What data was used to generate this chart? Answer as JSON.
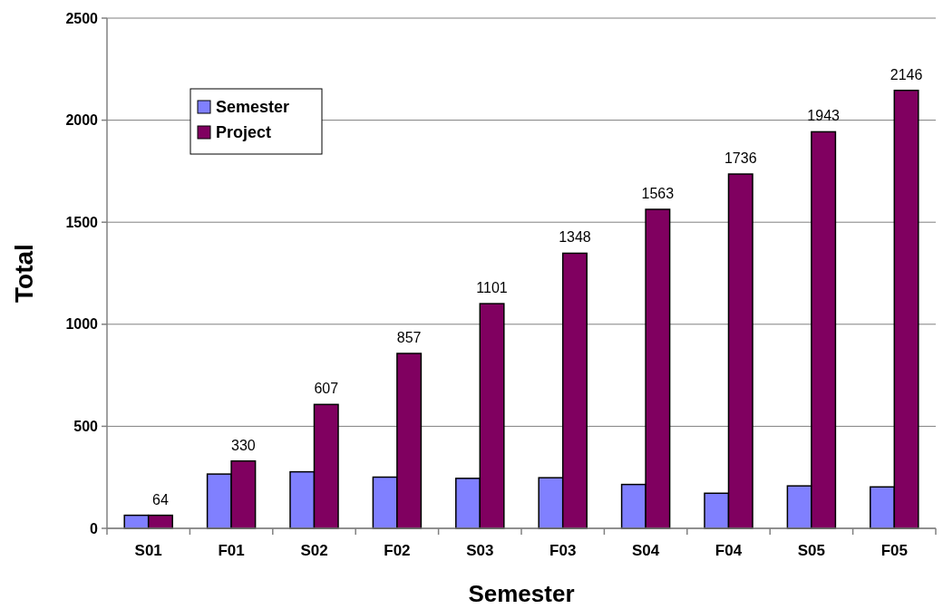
{
  "chart_data": {
    "type": "bar",
    "xlabel": "Semester",
    "ylabel": "Total",
    "categories": [
      "S01",
      "F01",
      "S02",
      "F02",
      "S03",
      "F03",
      "S04",
      "F04",
      "S05",
      "F05"
    ],
    "series": [
      {
        "name": "Semester",
        "color": "#8080ff",
        "values": [
          64,
          266,
          277,
          251,
          245,
          248,
          215,
          172,
          208,
          203
        ]
      },
      {
        "name": "Project",
        "color": "#800060",
        "values": [
          64,
          330,
          607,
          857,
          1101,
          1348,
          1563,
          1736,
          1943,
          2146
        ],
        "value_labels": [
          "64",
          "330",
          "607",
          "857",
          "1101",
          "1348",
          "1563",
          "1736",
          "1943",
          "2146"
        ]
      }
    ],
    "ylim": [
      0,
      2500
    ],
    "yticks": [
      0,
      500,
      1000,
      1500,
      2000,
      2500
    ],
    "grid": "y",
    "legend": "top left"
  }
}
